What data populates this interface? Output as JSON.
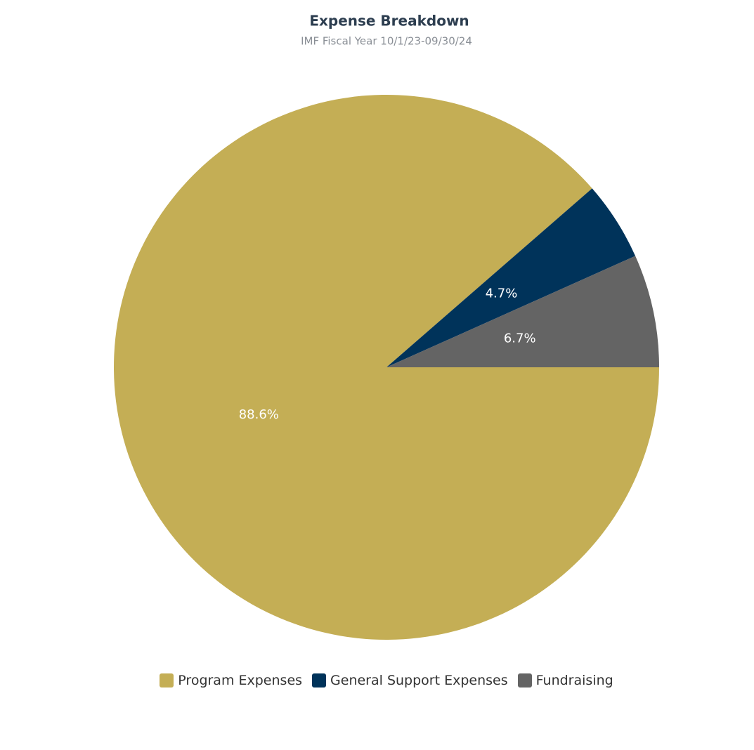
{
  "chart_data": {
    "type": "pie",
    "title": "Expense Breakdown",
    "subtitle": "IMF Fiscal Year 10/1/23-09/30/24",
    "categories": [
      "Program Expenses",
      "General Support Expenses",
      "Fundraising"
    ],
    "values": [
      88.6,
      4.7,
      6.7
    ],
    "value_labels": [
      "88.6%",
      "4.7%",
      "6.7%"
    ],
    "colors": [
      "#c4ae55",
      "#00335a",
      "#646464"
    ],
    "legend": "bottom"
  }
}
